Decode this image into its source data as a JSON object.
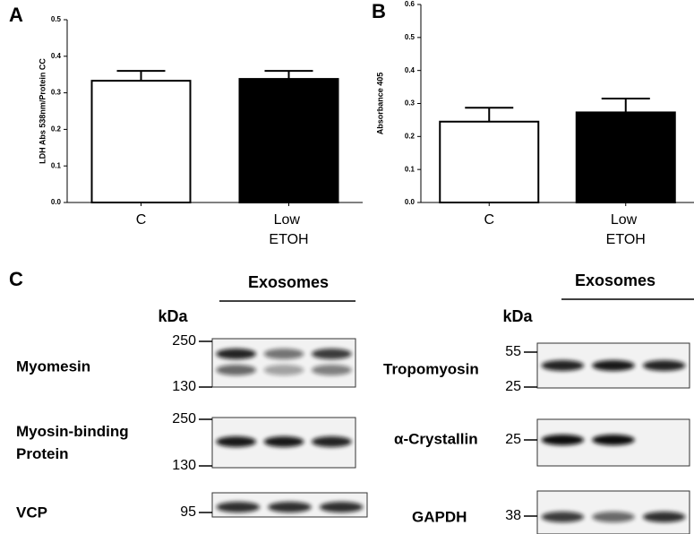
{
  "chart_data": [
    {
      "type": "bar",
      "panel": "A",
      "ylabel": "LDH Abs 538nm/Protein CC",
      "categories": [
        "C",
        "Low ETOH"
      ],
      "values": [
        0.333,
        0.338
      ],
      "errors": [
        0.027,
        0.022
      ],
      "colors": [
        "#ffffff",
        "#000000"
      ],
      "ylim": [
        0,
        0.5
      ],
      "yticks": [
        {
          "value": 0,
          "label": "0.0"
        },
        0.1,
        0.2,
        0.3,
        0.4,
        0.5
      ]
    },
    {
      "type": "bar",
      "panel": "B",
      "ylabel": "Absorbance 405",
      "categories": [
        "C",
        "Low ETOH"
      ],
      "values": [
        0.245,
        0.273
      ],
      "errors": [
        0.042,
        0.042
      ],
      "colors": [
        "#ffffff",
        "#000000"
      ],
      "ylim": [
        0,
        0.6
      ],
      "yticks": [
        {
          "value": 0,
          "label": "0.0"
        },
        0.1,
        0.2,
        0.3,
        0.4,
        0.5,
        0.6
      ]
    }
  ],
  "panel_c": {
    "label": "C",
    "left": {
      "header": "Exosomes",
      "unit": "kDa",
      "blots": [
        {
          "name": "Myomesin",
          "markers": [
            "250",
            "130"
          ]
        },
        {
          "name": "Myosin-binding Protein",
          "markers": [
            "250",
            "130"
          ]
        },
        {
          "name": "VCP",
          "markers": [
            "95"
          ]
        }
      ]
    },
    "right": {
      "header": "Exosomes",
      "unit": "kDa",
      "blots": [
        {
          "name": "Tropomyosin",
          "markers": [
            "55",
            "25"
          ]
        },
        {
          "name": "α-Crystallin",
          "markers": [
            "25"
          ]
        },
        {
          "name": "GAPDH",
          "markers": [
            "38"
          ]
        }
      ]
    }
  }
}
